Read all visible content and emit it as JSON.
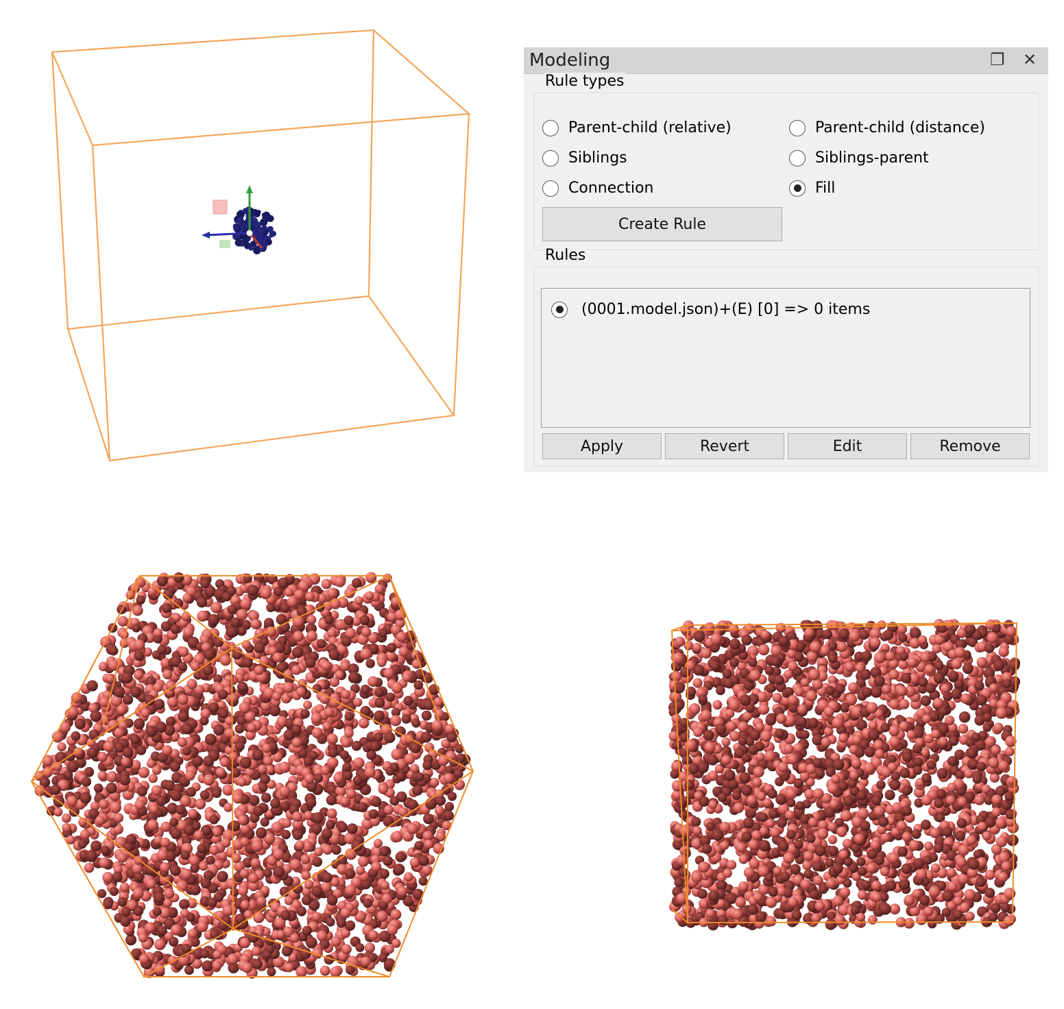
{
  "colors": {
    "box_edge": "#f5a55a",
    "sphere_light": "#f08078",
    "sphere_dark": "#6e2a28",
    "fill_edge": "#f08a2a",
    "molecule": "#1a1a5e",
    "axis_x": "#c0392b",
    "axis_y": "#2e9e3a",
    "axis_z": "#2b2ba8"
  },
  "modeling_panel": {
    "title": "Modeling",
    "float_icon": "float-window-icon",
    "close_icon": "close-icon",
    "rule_types": {
      "title": "Rule types",
      "options": [
        {
          "label": "Parent-child (relative)",
          "checked": false
        },
        {
          "label": "Parent-child (distance)",
          "checked": false
        },
        {
          "label": "Siblings",
          "checked": false
        },
        {
          "label": "Siblings-parent",
          "checked": false
        },
        {
          "label": "Connection",
          "checked": false
        },
        {
          "label": "Fill",
          "checked": true
        }
      ],
      "create_button": "Create Rule"
    },
    "rules": {
      "title": "Rules",
      "items": [
        {
          "label": "(0001.model.json)+(E) [0] => 0 items",
          "checked": true
        }
      ],
      "buttons": {
        "apply": "Apply",
        "revert": "Revert",
        "edit": "Edit",
        "remove": "Remove"
      }
    }
  }
}
